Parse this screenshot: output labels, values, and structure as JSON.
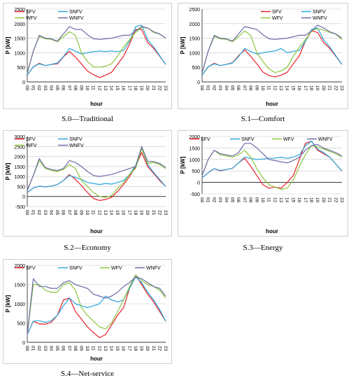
{
  "x_ticks": [
    "00",
    "01",
    "02",
    "03",
    "04",
    "05",
    "06",
    "07",
    "08",
    "09",
    "10",
    "11",
    "12",
    "13",
    "14",
    "15",
    "16",
    "17",
    "18",
    "19",
    "20",
    "21",
    "22",
    "23"
  ],
  "colors": {
    "SFV": "#e8212a",
    "SNFV": "#2aa6dc",
    "WFV": "#8cc63f",
    "WNFV": "#6b6ba8",
    "grid": "#c8c8c8"
  },
  "chart_data": [
    {
      "type": "line",
      "caption": "S.0—Traditional",
      "xlabel": "hour",
      "ylabel": "P [kW]",
      "ylim": [
        0,
        2500
      ],
      "yticks": [
        0,
        500,
        1000,
        1500,
        2000,
        2500
      ],
      "grid": true,
      "legend": "top-left",
      "series": [
        {
          "name": "SFV",
          "values": [
            230,
            520,
            640,
            560,
            600,
            620,
            860,
            1050,
            850,
            620,
            370,
            250,
            150,
            230,
            330,
            600,
            880,
            1300,
            1800,
            1800,
            1350,
            1150,
            880,
            600
          ]
        },
        {
          "name": "SNFV",
          "values": [
            230,
            520,
            620,
            560,
            600,
            650,
            870,
            1150,
            1050,
            960,
            1000,
            1040,
            1060,
            1040,
            1060,
            1040,
            1080,
            1400,
            1900,
            1950,
            1450,
            1200,
            900,
            600
          ]
        },
        {
          "name": "WFV",
          "values": [
            300,
            1050,
            1560,
            1480,
            1460,
            1380,
            1550,
            1720,
            1600,
            1000,
            700,
            520,
            500,
            540,
            620,
            880,
            1200,
            1450,
            1700,
            1870,
            1850,
            1700,
            1640,
            1500
          ]
        },
        {
          "name": "WNFV",
          "values": [
            300,
            1050,
            1600,
            1500,
            1480,
            1400,
            1650,
            1900,
            1800,
            1800,
            1620,
            1480,
            1460,
            1480,
            1500,
            1550,
            1600,
            1600,
            1750,
            1900,
            1850,
            1720,
            1650,
            1500
          ]
        }
      ]
    },
    {
      "type": "line",
      "caption": "S.1—Comfort",
      "xlabel": "hour",
      "ylabel": "P [kW]",
      "ylim": [
        0,
        2500
      ],
      "yticks": [
        0,
        500,
        1000,
        1500,
        2000,
        2500
      ],
      "grid": true,
      "legend": "top-left",
      "series": [
        {
          "name": "SFV",
          "values": [
            230,
            520,
            640,
            560,
            600,
            660,
            900,
            1100,
            880,
            620,
            340,
            220,
            170,
            230,
            330,
            620,
            900,
            1400,
            1750,
            1700,
            1350,
            1150,
            880,
            600
          ]
        },
        {
          "name": "SNFV",
          "values": [
            230,
            520,
            620,
            560,
            600,
            650,
            870,
            1150,
            1040,
            960,
            1000,
            1040,
            1060,
            1150,
            1000,
            1050,
            1080,
            1400,
            1800,
            1850,
            1450,
            1200,
            900,
            600
          ]
        },
        {
          "name": "WFV",
          "values": [
            300,
            1050,
            1560,
            1480,
            1460,
            1380,
            1550,
            1750,
            1600,
            1000,
            700,
            450,
            320,
            380,
            500,
            880,
            1200,
            1450,
            1750,
            1830,
            1780,
            1700,
            1640,
            1450
          ]
        },
        {
          "name": "WNFV",
          "values": [
            300,
            1050,
            1600,
            1500,
            1480,
            1400,
            1650,
            1900,
            1850,
            1800,
            1620,
            1480,
            1460,
            1480,
            1500,
            1550,
            1600,
            1600,
            1750,
            1950,
            1850,
            1720,
            1650,
            1500
          ]
        }
      ]
    },
    {
      "type": "line",
      "caption": "S.2—Economy",
      "xlabel": "hour",
      "ylabel": "P [kW]",
      "ylim": [
        -500,
        3000
      ],
      "yticks": [
        -500,
        0,
        500,
        1000,
        1500,
        2000,
        2500,
        3000
      ],
      "grid": true,
      "legend": "top-left",
      "series": [
        {
          "name": "SFV",
          "values": [
            200,
            420,
            520,
            480,
            520,
            600,
            800,
            1100,
            850,
            550,
            200,
            -100,
            -200,
            -150,
            -50,
            250,
            600,
            1000,
            1500,
            2200,
            1500,
            1150,
            800,
            500
          ]
        },
        {
          "name": "SNFV",
          "values": [
            200,
            420,
            520,
            480,
            520,
            600,
            800,
            1050,
            950,
            850,
            700,
            650,
            600,
            650,
            620,
            700,
            800,
            1100,
            1550,
            2400,
            1600,
            1200,
            850,
            500
          ]
        },
        {
          "name": "WFV",
          "values": [
            300,
            1050,
            1800,
            1400,
            1300,
            1250,
            1350,
            1600,
            1400,
            800,
            500,
            200,
            0,
            -50,
            50,
            400,
            700,
            1100,
            1400,
            2400,
            1650,
            1700,
            1600,
            1400
          ]
        },
        {
          "name": "WNFV",
          "values": [
            300,
            1050,
            1900,
            1450,
            1350,
            1300,
            1400,
            1800,
            1700,
            1500,
            1250,
            1050,
            1000,
            1050,
            1100,
            1200,
            1300,
            1400,
            1500,
            2500,
            1750,
            1750,
            1650,
            1450
          ]
        }
      ]
    },
    {
      "type": "line",
      "caption": "S.3—Energy",
      "xlabel": "hour",
      "ylabel": "P [kW]",
      "ylim": [
        -500,
        2000
      ],
      "yticks": [
        -500,
        0,
        500,
        1000,
        1500,
        2000
      ],
      "grid": true,
      "legend": "top",
      "series": [
        {
          "name": "SFV",
          "values": [
            200,
            420,
            600,
            500,
            560,
            620,
            850,
            1050,
            700,
            300,
            -100,
            -250,
            -200,
            -250,
            0,
            300,
            1000,
            1700,
            1800,
            1400,
            1250,
            1100,
            800,
            500
          ]
        },
        {
          "name": "SNFV",
          "values": [
            200,
            420,
            600,
            520,
            560,
            620,
            850,
            1100,
            1050,
            1000,
            1020,
            1050,
            1060,
            1100,
            1050,
            1100,
            1200,
            1600,
            1800,
            1450,
            1300,
            1100,
            800,
            500
          ]
        },
        {
          "name": "WFV",
          "values": [
            300,
            1000,
            1400,
            1200,
            1150,
            1100,
            1200,
            1400,
            1100,
            600,
            200,
            -100,
            -200,
            -300,
            -250,
            100,
            700,
            1200,
            1600,
            1550,
            1450,
            1350,
            1250,
            1100
          ]
        },
        {
          "name": "WNFV",
          "values": [
            300,
            1000,
            1400,
            1250,
            1200,
            1150,
            1300,
            1700,
            1700,
            1500,
            1250,
            1000,
            950,
            900,
            850,
            950,
            1100,
            1400,
            1600,
            1650,
            1500,
            1400,
            1300,
            1150
          ]
        }
      ]
    },
    {
      "type": "line",
      "caption": "S.4—Net-service",
      "xlabel": "hour",
      "ylabel": "P [kW]",
      "ylim": [
        0,
        2000
      ],
      "yticks": [
        0,
        500,
        1000,
        1500,
        2000
      ],
      "grid": true,
      "legend": "top",
      "series": [
        {
          "name": "SFV",
          "values": [
            200,
            550,
            480,
            470,
            520,
            700,
            1100,
            1150,
            800,
            600,
            400,
            250,
            120,
            200,
            450,
            700,
            900,
            1400,
            1750,
            1500,
            1250,
            1050,
            800,
            550
          ]
        },
        {
          "name": "SNFV",
          "values": [
            200,
            550,
            560,
            520,
            560,
            700,
            950,
            1150,
            1000,
            950,
            900,
            950,
            1000,
            1200,
            1100,
            1050,
            1100,
            1400,
            1700,
            1550,
            1300,
            1100,
            850,
            550
          ]
        },
        {
          "name": "WFV",
          "values": [
            200,
            1500,
            1500,
            1350,
            1300,
            1300,
            1500,
            1550,
            1350,
            900,
            700,
            550,
            400,
            350,
            500,
            800,
            1100,
            1450,
            1750,
            1600,
            1500,
            1450,
            1350,
            1150
          ]
        },
        {
          "name": "WNFV",
          "values": [
            200,
            1650,
            1450,
            1450,
            1400,
            1400,
            1550,
            1600,
            1500,
            1450,
            1400,
            1250,
            1200,
            1150,
            1200,
            1300,
            1450,
            1550,
            1700,
            1650,
            1550,
            1450,
            1400,
            1200
          ]
        }
      ]
    }
  ]
}
